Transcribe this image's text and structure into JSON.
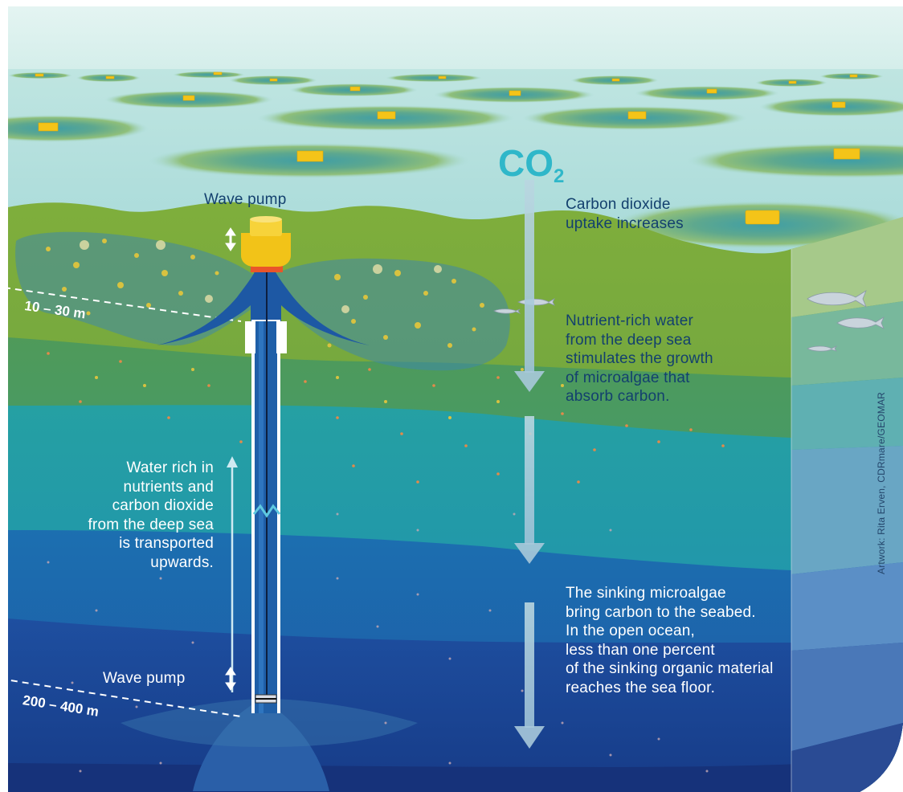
{
  "labels": {
    "wave_pump_top": "Wave pump",
    "wave_pump_bottom": "Wave pump",
    "co2_main": "CO",
    "co2_sub": "2",
    "uptake_line1": "Carbon dioxide",
    "uptake_line2": "uptake increases",
    "nutrient_line1": "Nutrient-rich water",
    "nutrient_line2": "from the deep sea",
    "nutrient_line3": "stimulates the growth",
    "nutrient_line4": "of microalgae that",
    "nutrient_line5": "absorb carbon.",
    "upwelling_line1": "Water rich in",
    "upwelling_line2": "nutrients and",
    "upwelling_line3": "carbon dioxide",
    "upwelling_line4": "from the deep sea",
    "upwelling_line5": "is transported",
    "upwelling_line6": "upwards.",
    "sinking_line1": "The sinking microalgae",
    "sinking_line2": "bring carbon to the seabed.",
    "sinking_line3": "In the open ocean,",
    "sinking_line4": "less than one percent",
    "sinking_line5": "of the sinking organic material",
    "sinking_line6": "reaches the sea floor.",
    "depth_shallow": "10 – 30 m",
    "depth_deep": "200 – 400 m",
    "credit": "Artwork: Rita Erven, CDRmare/GEOMAR"
  },
  "colors": {
    "sky": "#dff2f0",
    "sea_surface": "#a9dcd8",
    "bloom_green": "#6f9f3a",
    "layer_teal": "#2aa0a8",
    "layer_mid": "#1d7fb5",
    "layer_deep": "#1e56a4",
    "seabed": "#17347e",
    "pump_yellow": "#f2c318",
    "pipe_blue": "#1d4f9c",
    "text_navy": "#13406e",
    "co2_cyan": "#2fb7c9"
  }
}
